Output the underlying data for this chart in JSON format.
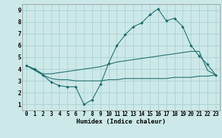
{
  "bg_color": "#cce8e8",
  "grid_color": "#aacfcf",
  "line_color": "#1a6b6b",
  "xlabel": "Humidex (Indice chaleur)",
  "xlim": [
    -0.5,
    23.5
  ],
  "ylim": [
    0.5,
    9.5
  ],
  "xticks": [
    0,
    1,
    2,
    3,
    4,
    5,
    6,
    7,
    8,
    9,
    10,
    11,
    12,
    13,
    14,
    15,
    16,
    17,
    18,
    19,
    20,
    21,
    22,
    23
  ],
  "yticks": [
    1,
    2,
    3,
    4,
    5,
    6,
    7,
    8,
    9
  ],
  "curve1_x": [
    0,
    1,
    2,
    3,
    4,
    5,
    6,
    7,
    8,
    9,
    10,
    11,
    12,
    13,
    14,
    15,
    16,
    17,
    18,
    19,
    20,
    21,
    22,
    23
  ],
  "curve1_y": [
    4.3,
    4.0,
    3.5,
    2.9,
    2.6,
    2.5,
    2.5,
    1.0,
    1.4,
    2.7,
    4.5,
    6.0,
    6.9,
    7.6,
    7.9,
    8.6,
    9.1,
    8.1,
    8.3,
    7.6,
    6.0,
    5.1,
    4.4,
    3.5
  ],
  "curve2_x": [
    0,
    1,
    2,
    3,
    4,
    5,
    6,
    7,
    8,
    9,
    10,
    11,
    12,
    13,
    14,
    15,
    16,
    17,
    18,
    19,
    20,
    21,
    22,
    23
  ],
  "curve2_y": [
    4.3,
    3.9,
    3.5,
    3.2,
    3.1,
    3.1,
    3.0,
    3.0,
    3.0,
    3.0,
    3.1,
    3.1,
    3.2,
    3.2,
    3.2,
    3.2,
    3.2,
    3.2,
    3.3,
    3.3,
    3.3,
    3.4,
    3.4,
    3.5
  ],
  "curve3_x": [
    0,
    1,
    2,
    3,
    4,
    5,
    6,
    7,
    8,
    9,
    10,
    11,
    12,
    13,
    14,
    15,
    16,
    17,
    18,
    19,
    20,
    21,
    22,
    23
  ],
  "curve3_y": [
    4.3,
    4.0,
    3.6,
    3.6,
    3.7,
    3.8,
    3.9,
    4.0,
    4.1,
    4.2,
    4.4,
    4.6,
    4.7,
    4.8,
    4.9,
    5.0,
    5.1,
    5.2,
    5.3,
    5.4,
    5.5,
    5.5,
    3.9,
    3.5
  ],
  "title_fontsize": 7,
  "tick_fontsize": 5.5,
  "xlabel_fontsize": 6.5
}
